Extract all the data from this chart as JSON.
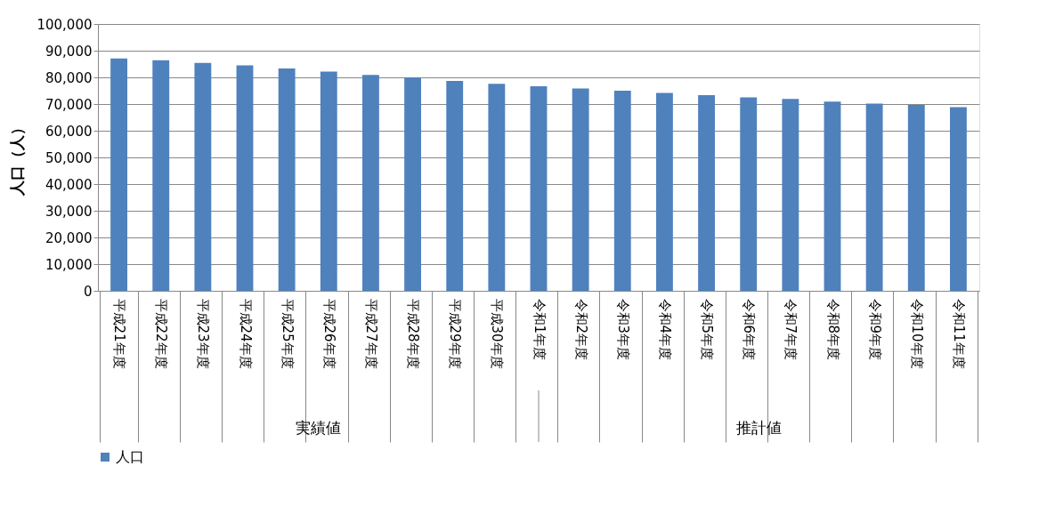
{
  "chart_data": {
    "type": "bar",
    "categories": [
      "平成21年度",
      "平成22年度",
      "平成23年度",
      "平成24年度",
      "平成25年度",
      "平成26年度",
      "平成27年度",
      "平成28年度",
      "平成29年度",
      "平成30年度",
      "令和1年度",
      "令和2年度",
      "令和3年度",
      "令和4年度",
      "令和5年度",
      "令和6年度",
      "令和7年度",
      "令和8年度",
      "令和9年度",
      "令和10年度",
      "令和11年度"
    ],
    "series": [
      {
        "name": "人口",
        "color": "#4f81bd",
        "values": [
          87100,
          86400,
          85400,
          84500,
          83300,
          82200,
          80900,
          79900,
          78700,
          77600,
          76700,
          75800,
          75000,
          74200,
          73300,
          72500,
          71900,
          70900,
          70200,
          69700,
          68800
        ]
      }
    ],
    "ylabel": "人口（人）",
    "ylim": [
      0,
      100000
    ],
    "yticks": [
      {
        "value": 0,
        "label": "0"
      },
      {
        "value": 10000,
        "label": "10,000"
      },
      {
        "value": 20000,
        "label": "20,000"
      },
      {
        "value": 30000,
        "label": "30,000"
      },
      {
        "value": 40000,
        "label": "40,000"
      },
      {
        "value": 50000,
        "label": "50,000"
      },
      {
        "value": 60000,
        "label": "60,000"
      },
      {
        "value": 70000,
        "label": "70,000"
      },
      {
        "value": 80000,
        "label": "80,000"
      },
      {
        "value": 90000,
        "label": "90,000"
      },
      {
        "value": 100000,
        "label": "100,000"
      }
    ],
    "annotations": [
      "実績値",
      "推計値"
    ],
    "grid": "y",
    "legend": "bottom"
  }
}
